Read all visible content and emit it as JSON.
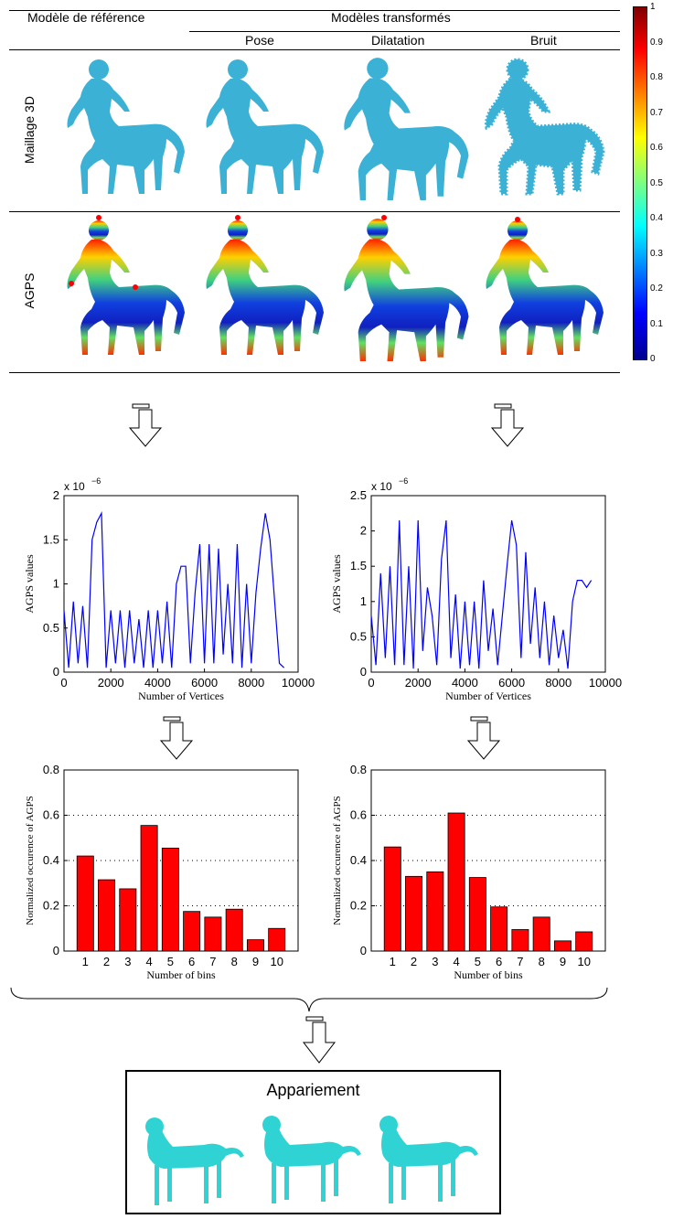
{
  "header": {
    "reference_label": "Modèle de référence",
    "transformed_label": "Modèles transformés",
    "columns": [
      "Pose",
      "Dilatation",
      "Bruit"
    ]
  },
  "rows": {
    "mesh_label": "Maillage 3D",
    "agps_label": "AGPS"
  },
  "colorbar": {
    "ticks": [
      "1",
      "0.9",
      "0.8",
      "0.7",
      "0.6",
      "0.5",
      "0.4",
      "0.3",
      "0.2",
      "0.1",
      "0"
    ],
    "colormap": "jet"
  },
  "colors": {
    "mesh": "#3bb1d6",
    "line": "#0000ff",
    "bar": "#ff0000",
    "match_mesh": "#2fd3d3"
  },
  "matching": {
    "title": "Appariement"
  },
  "chart_data": [
    {
      "type": "line",
      "ylabel": "AGPS values",
      "xlabel": "Number of Vertices",
      "exponent_label": "x 10",
      "exponent_sup": "−6",
      "xlim": [
        0,
        10000
      ],
      "ylim": [
        0,
        2
      ],
      "xticks": [
        "0",
        "2000",
        "4000",
        "6000",
        "8000",
        "10000"
      ],
      "yticks": [
        "0",
        "0.5",
        "1",
        "1.5",
        "2"
      ],
      "x": [
        0,
        200,
        400,
        600,
        800,
        1000,
        1200,
        1400,
        1600,
        1800,
        2000,
        2200,
        2400,
        2600,
        2800,
        3000,
        3200,
        3400,
        3600,
        3800,
        4000,
        4200,
        4400,
        4600,
        4800,
        5000,
        5200,
        5400,
        5600,
        5800,
        6000,
        6200,
        6400,
        6600,
        6800,
        7000,
        7200,
        7400,
        7600,
        7800,
        8000,
        8200,
        8400,
        8600,
        8800,
        9000,
        9200,
        9400
      ],
      "y": [
        0.7,
        0.05,
        0.8,
        0.1,
        0.75,
        0.05,
        1.5,
        1.7,
        1.8,
        0.05,
        0.7,
        0.1,
        0.7,
        0.05,
        0.7,
        0.1,
        0.6,
        0.05,
        0.7,
        0.05,
        0.7,
        0.1,
        0.8,
        0.05,
        1.0,
        1.2,
        1.2,
        0.1,
        0.9,
        1.45,
        0.1,
        1.45,
        0.1,
        1.4,
        0.2,
        1.0,
        0.1,
        1.45,
        0.05,
        1.0,
        0.1,
        0.9,
        1.4,
        1.8,
        1.5,
        0.8,
        0.1,
        0.05
      ]
    },
    {
      "type": "line",
      "ylabel": "AGPS values",
      "xlabel": "Number of Vertices",
      "exponent_label": "x 10",
      "exponent_sup": "−6",
      "xlim": [
        0,
        10000
      ],
      "ylim": [
        0,
        2.5
      ],
      "xticks": [
        "0",
        "2000",
        "4000",
        "6000",
        "8000",
        "10000"
      ],
      "yticks": [
        "0",
        "0.5",
        "1",
        "1.5",
        "2",
        "2.5"
      ],
      "x": [
        0,
        200,
        400,
        600,
        800,
        1000,
        1200,
        1400,
        1600,
        1800,
        2000,
        2200,
        2400,
        2600,
        2800,
        3000,
        3200,
        3400,
        3600,
        3800,
        4000,
        4200,
        4400,
        4600,
        4800,
        5000,
        5200,
        5400,
        5600,
        5800,
        6000,
        6200,
        6400,
        6600,
        6800,
        7000,
        7200,
        7400,
        7600,
        7800,
        8000,
        8200,
        8400,
        8600,
        8800,
        9000,
        9200,
        9400
      ],
      "y": [
        0.8,
        0.1,
        1.4,
        0.2,
        1.5,
        0.1,
        2.15,
        0.1,
        1.5,
        0.05,
        2.15,
        0.3,
        1.2,
        0.8,
        0.1,
        1.6,
        2.15,
        0.2,
        1.1,
        0.05,
        1.0,
        0.1,
        1.0,
        0.05,
        1.3,
        0.3,
        0.9,
        0.1,
        0.8,
        1.5,
        2.15,
        1.8,
        0.2,
        1.7,
        0.4,
        1.2,
        0.2,
        1.0,
        0.1,
        0.8,
        0.2,
        0.6,
        0.05,
        1.0,
        1.3,
        1.3,
        1.2,
        1.3
      ]
    },
    {
      "type": "bar",
      "ylabel": "Normalized occurence of AGPS",
      "xlabel": "Number of bins",
      "categories": [
        "1",
        "2",
        "3",
        "4",
        "5",
        "6",
        "7",
        "8",
        "9",
        "10"
      ],
      "values": [
        0.42,
        0.315,
        0.275,
        0.555,
        0.455,
        0.175,
        0.15,
        0.185,
        0.05,
        0.1
      ],
      "ylim": [
        0,
        0.8
      ],
      "yticks": [
        "0",
        "0.2",
        "0.4",
        "0.6",
        "0.8"
      ],
      "grid": "y-dotted"
    },
    {
      "type": "bar",
      "ylabel": "Normalized occurence of AGPS",
      "xlabel": "Number of bins",
      "categories": [
        "1",
        "2",
        "3",
        "4",
        "5",
        "6",
        "7",
        "8",
        "9",
        "10"
      ],
      "values": [
        0.46,
        0.33,
        0.35,
        0.61,
        0.325,
        0.195,
        0.095,
        0.15,
        0.045,
        0.085
      ],
      "ylim": [
        0,
        0.8
      ],
      "yticks": [
        "0",
        "0.2",
        "0.4",
        "0.6",
        "0.8"
      ],
      "grid": "y-dotted"
    }
  ]
}
